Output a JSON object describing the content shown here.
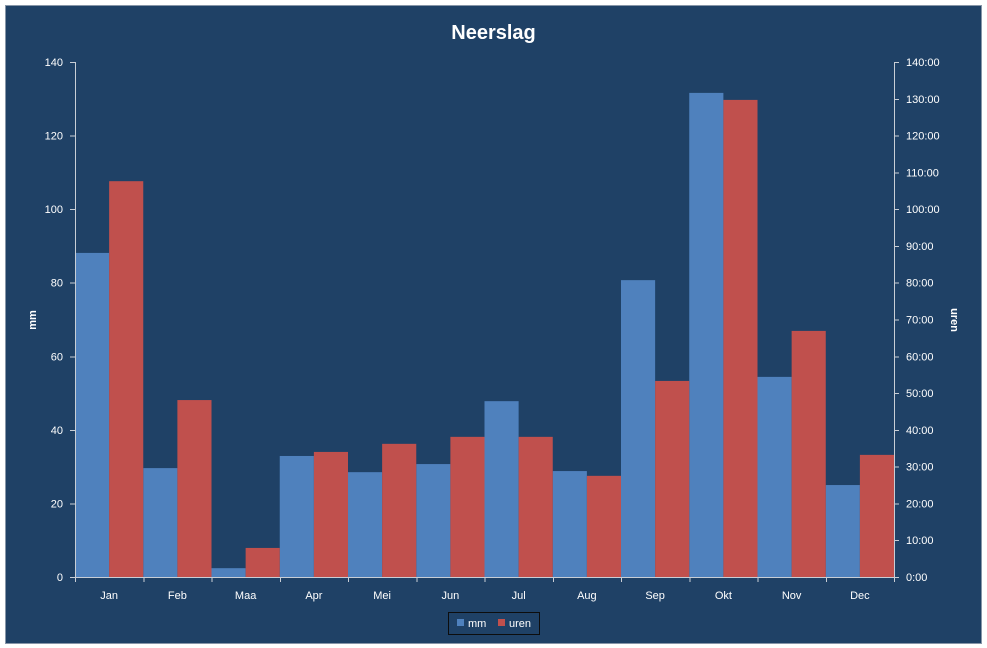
{
  "chart_data": {
    "type": "bar",
    "title": "Neerslag",
    "categories": [
      "Jan",
      "Feb",
      "Maa",
      "Apr",
      "Mei",
      "Jun",
      "Jul",
      "Aug",
      "Sep",
      "Okt",
      "Nov",
      "Dec"
    ],
    "series": [
      {
        "name": "mm",
        "axis": "left",
        "color": "#4f81bd",
        "values": [
          88.1,
          29.6,
          2.4,
          32.9,
          28.5,
          30.7,
          47.8,
          28.8,
          80.7,
          131.6,
          54.4,
          25.0
        ]
      },
      {
        "name": "uren",
        "axis": "right",
        "color": "#c0504d",
        "values": [
          107.6,
          48.1,
          7.9,
          34.0,
          36.2,
          38.1,
          38.1,
          27.5,
          53.3,
          129.7,
          66.9,
          33.2
        ]
      }
    ],
    "xlabel": "",
    "ylabel": "mm",
    "ylabel_right": "uren",
    "ylim": [
      0,
      140
    ],
    "ylim_right": [
      0,
      140
    ],
    "yticks": [
      "0",
      "20",
      "40",
      "60",
      "80",
      "100",
      "120",
      "140"
    ],
    "yticks_right": [
      "0:00",
      "10:00",
      "20:00",
      "30:00",
      "40:00",
      "50:00",
      "60:00",
      "70:00",
      "80:00",
      "90:00",
      "100:00",
      "110:00",
      "120:00",
      "130:00",
      "140:00"
    ],
    "grid": false,
    "legend": "bottom"
  },
  "colors": {
    "background": "#1f4166",
    "text": "#ffffff",
    "axis": "#c8ced6",
    "legend_border": "#0d0d0d"
  }
}
